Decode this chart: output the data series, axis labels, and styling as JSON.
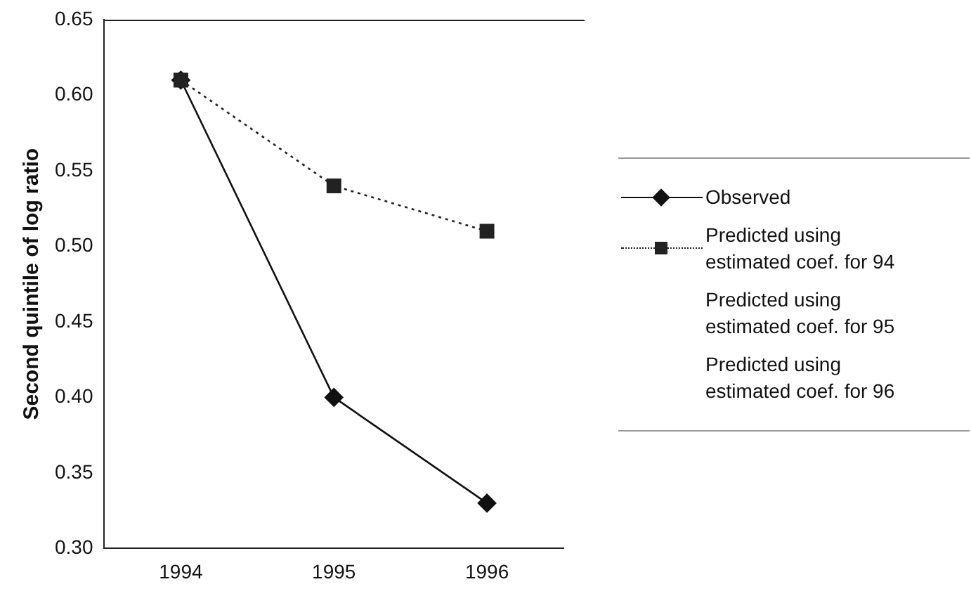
{
  "chart_data": {
    "type": "line",
    "ylabel": "Second quintile of log ratio",
    "categories": [
      "1994",
      "1995",
      "1996"
    ],
    "ylim": [
      0.3,
      0.65
    ],
    "yticks": [
      {
        "value": 0.3,
        "label": "0.30"
      },
      {
        "value": 0.35,
        "label": "0.35"
      },
      {
        "value": 0.4,
        "label": "0.40"
      },
      {
        "value": 0.45,
        "label": "0.45"
      },
      {
        "value": 0.5,
        "label": "0.50"
      },
      {
        "value": 0.55,
        "label": "0.55"
      },
      {
        "value": 0.6,
        "label": "0.60"
      },
      {
        "value": 0.65,
        "label": "0.65"
      }
    ],
    "grid": false,
    "legend": "right",
    "series": [
      {
        "name": "Observed",
        "color": "#111111",
        "marker": "diamond",
        "line_style": "solid",
        "values": [
          0.61,
          0.4,
          0.33
        ]
      },
      {
        "name": "Predicted using estimated coef. for 94",
        "color": "#222222",
        "marker": "square",
        "line_style": "dotted",
        "values": [
          0.61,
          0.54,
          0.51
        ]
      },
      {
        "name": "Predicted using estimated coef. for 95",
        "values": [
          null,
          null,
          null
        ]
      },
      {
        "name": "Predicted using estimated coef. for 96",
        "values": [
          null,
          null,
          null
        ]
      }
    ]
  }
}
